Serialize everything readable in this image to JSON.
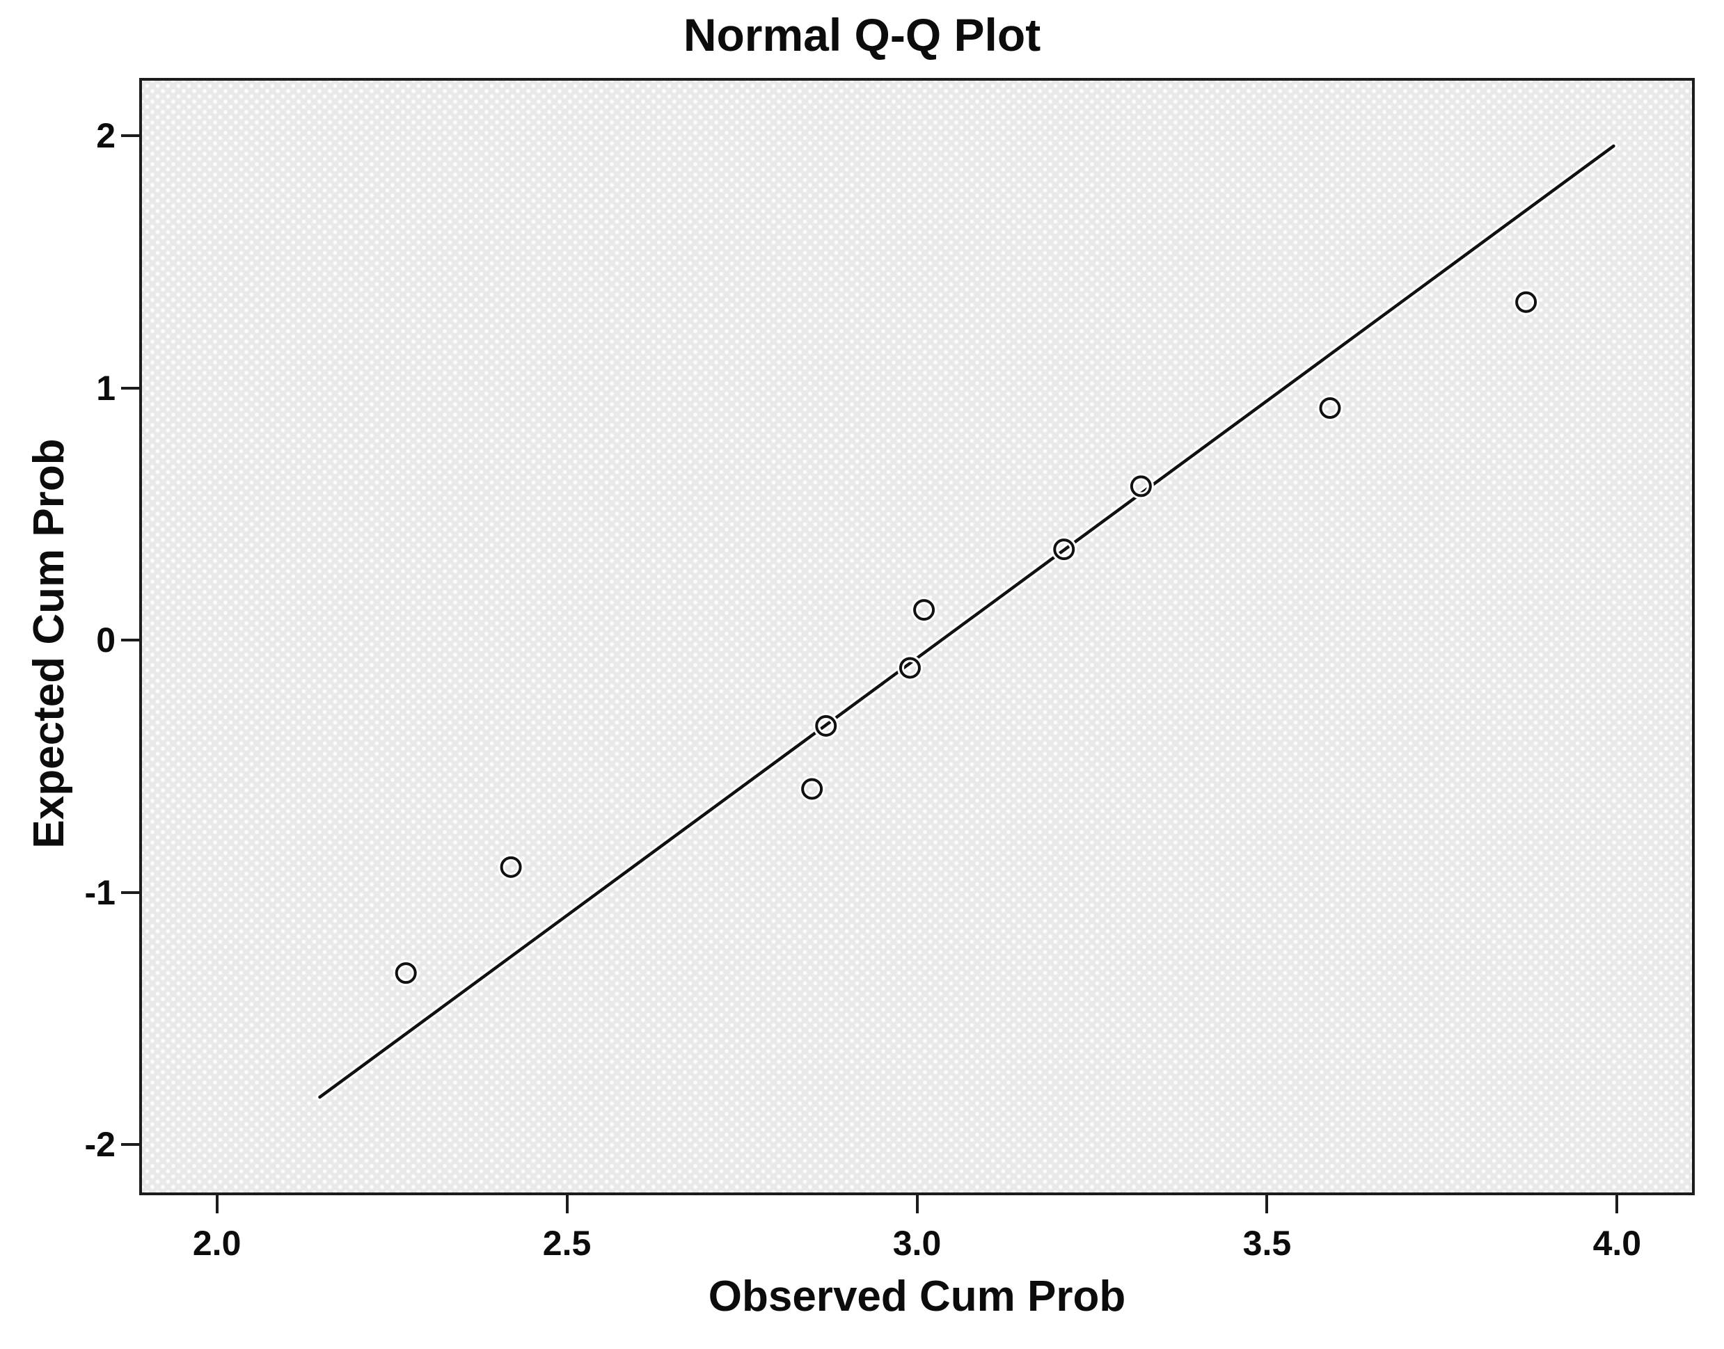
{
  "title": "Normal Q-Q Plot",
  "axes": {
    "x_label": "Observed Cum Prob",
    "y_label": "Expected Cum Prob"
  },
  "colors": {
    "plot_background": "#e9e9e9",
    "plot_dot_pattern": "#fdfdfd",
    "frame": "#1c1c1c",
    "marker_stroke": "#111111",
    "line_stroke": "#111111",
    "halo": "#ffffff",
    "text": "#0c0c0c",
    "page_background": "#ffffff"
  },
  "chart_data": {
    "type": "scatter",
    "title": "Normal Q-Q Plot",
    "xlabel": "Observed Cum Prob",
    "ylabel": "Expected Cum Prob",
    "xlim": [
      1.893,
      4.107
    ],
    "ylim": [
      -2.19,
      2.218
    ],
    "grid": "off",
    "legend": "none",
    "marker": "open-circle",
    "x_ticks": [
      {
        "value": 2.0,
        "label": "2.0"
      },
      {
        "value": 2.5,
        "label": "2.5"
      },
      {
        "value": 3.0,
        "label": "3.0"
      },
      {
        "value": 3.5,
        "label": "3.5"
      },
      {
        "value": 4.0,
        "label": "4.0"
      }
    ],
    "y_ticks": [
      {
        "value": -2,
        "label": "-2"
      },
      {
        "value": -1,
        "label": "-1"
      },
      {
        "value": 0,
        "label": "0"
      },
      {
        "value": 1,
        "label": "1"
      },
      {
        "value": 2,
        "label": "2"
      }
    ],
    "points": [
      {
        "x": 2.27,
        "y": -1.32
      },
      {
        "x": 2.42,
        "y": -0.9
      },
      {
        "x": 2.85,
        "y": -0.59
      },
      {
        "x": 2.87,
        "y": -0.34
      },
      {
        "x": 2.99,
        "y": -0.11
      },
      {
        "x": 3.01,
        "y": 0.12
      },
      {
        "x": 3.21,
        "y": 0.36
      },
      {
        "x": 3.32,
        "y": 0.61
      },
      {
        "x": 3.59,
        "y": 0.92
      },
      {
        "x": 3.87,
        "y": 1.34
      }
    ],
    "fit_line": {
      "x1": 2.147,
      "y1": -1.812,
      "x2": 3.995,
      "y2": 1.959
    }
  }
}
